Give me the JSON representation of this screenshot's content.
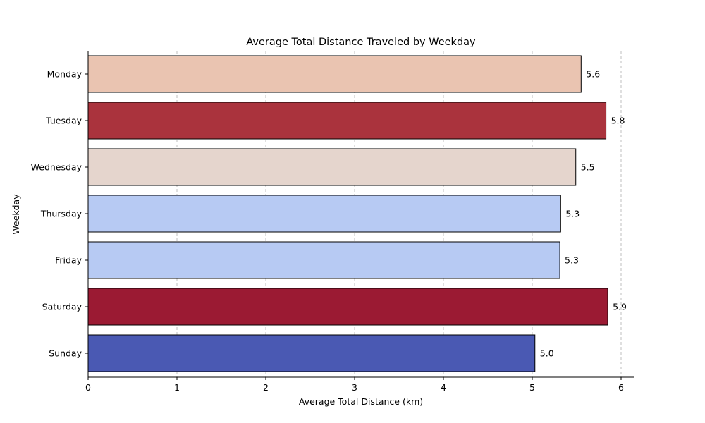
{
  "chart_data": {
    "type": "bar",
    "orientation": "horizontal",
    "title": "Average Total Distance Traveled by Weekday",
    "xlabel": "Average Total Distance (km)",
    "ylabel": "Weekday",
    "xlim": [
      0,
      6.15
    ],
    "xticks": [
      0,
      1,
      2,
      3,
      4,
      5,
      6
    ],
    "grid": "vertical-dashed",
    "categories": [
      "Monday",
      "Tuesday",
      "Wednesday",
      "Thursday",
      "Friday",
      "Saturday",
      "Sunday"
    ],
    "values": [
      5.55,
      5.83,
      5.49,
      5.32,
      5.31,
      5.85,
      5.03
    ],
    "value_labels": [
      "5.6",
      "5.8",
      "5.5",
      "5.3",
      "5.3",
      "5.9",
      "5.0"
    ],
    "colors": [
      "#eac4b1",
      "#aa333d",
      "#e5d5cd",
      "#b7caf3",
      "#b7caf3",
      "#9b1a33",
      "#4a59b3"
    ]
  }
}
